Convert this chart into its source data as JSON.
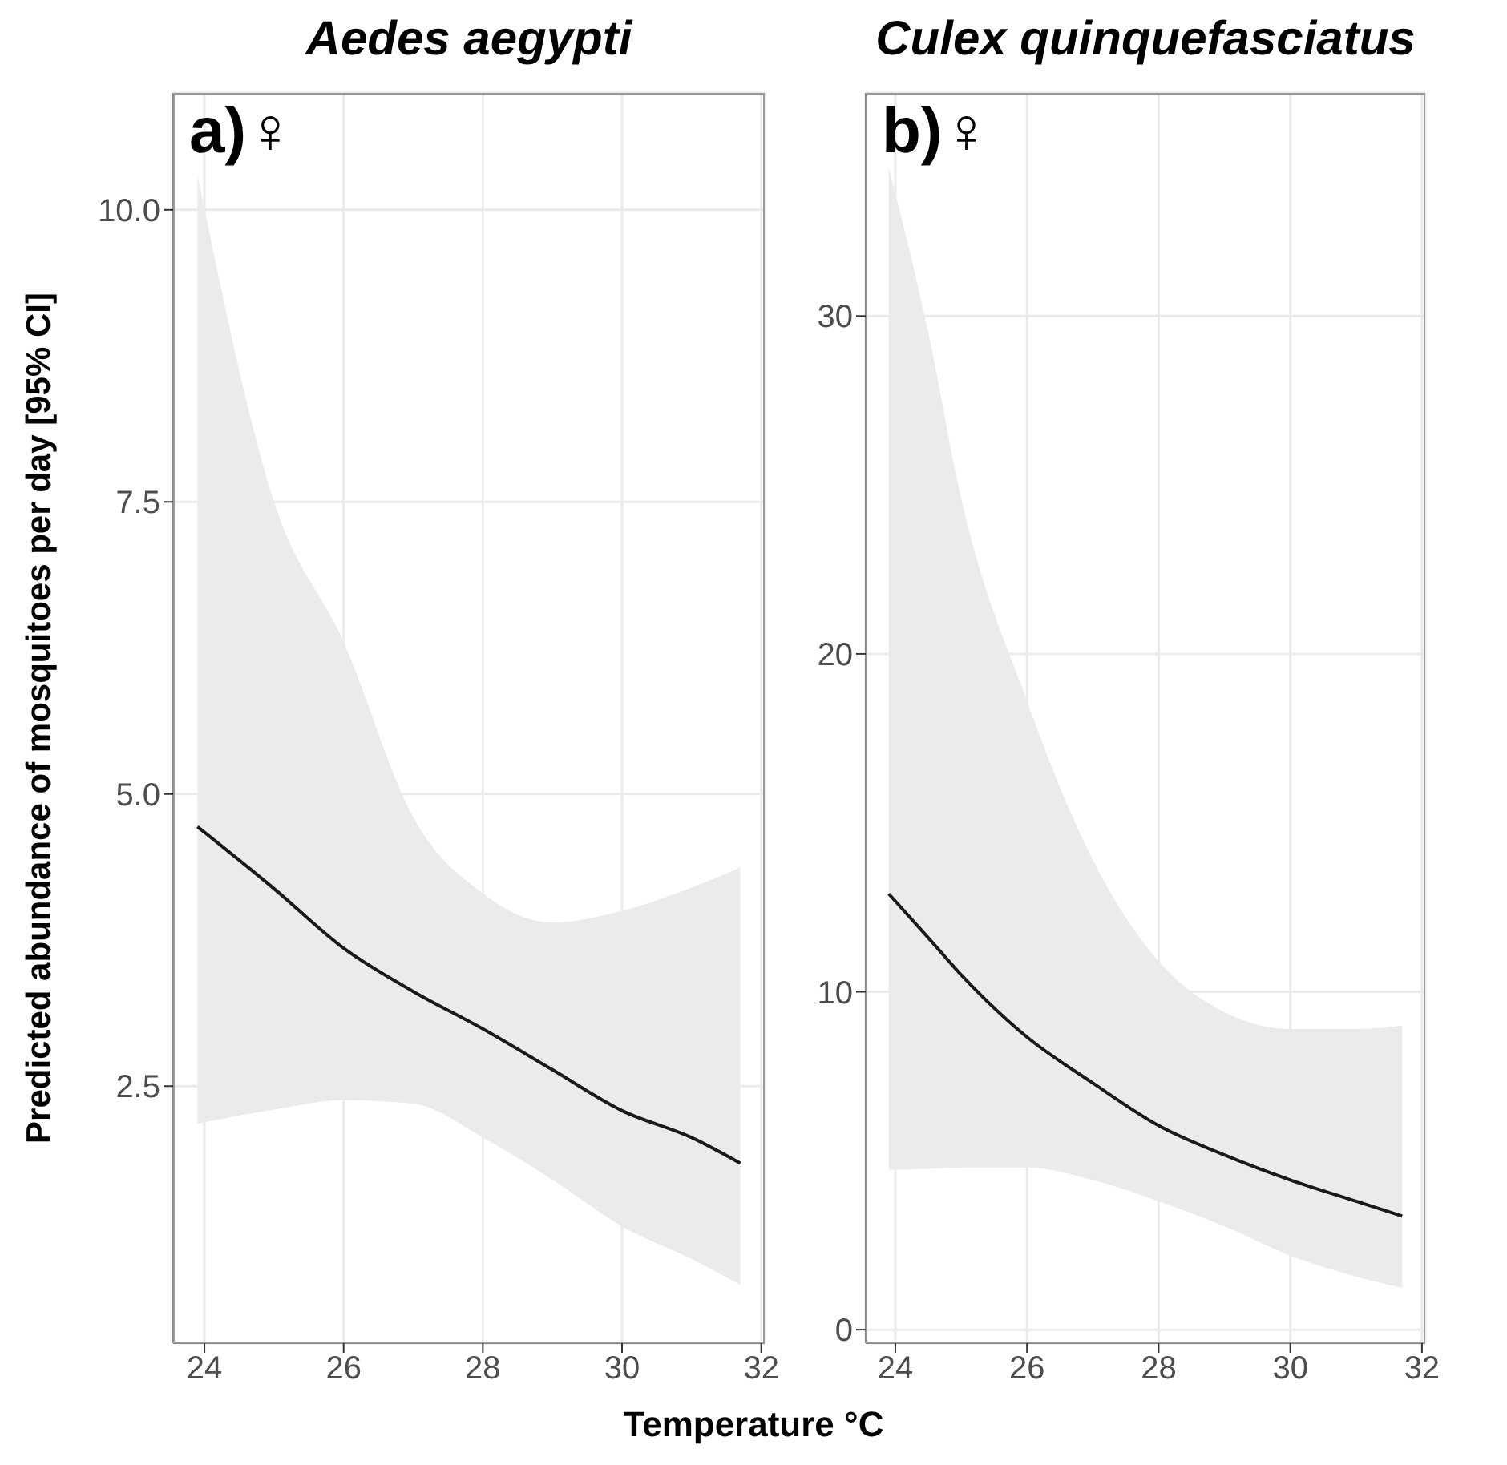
{
  "chart_data": [
    {
      "type": "line",
      "title": "Aedes aegypti",
      "ylabel": "Predicted abundance of mosquitoes per day [95% CI]",
      "xlabel": "Temperature °C",
      "annotations": [
        "a)♀"
      ],
      "xlim": [
        23.55,
        32.05
      ],
      "xticks": [
        24,
        26,
        28,
        30,
        32
      ],
      "ylim": [
        0.3,
        11.0
      ],
      "yticks": [
        2.5,
        {
          "value": 5,
          "label": "5.0"
        },
        7.5,
        {
          "value": 10,
          "label": "10.0"
        }
      ],
      "grid": true,
      "legend": false,
      "marker": "none",
      "line_style": "solid",
      "x": [
        23.9,
        25,
        26,
        27,
        28,
        29,
        30,
        31,
        31.7
      ],
      "series": [
        {
          "color": "#1a1a1a",
          "values": [
            4.72,
            4.19,
            3.68,
            3.31,
            2.99,
            2.64,
            2.29,
            2.06,
            1.84
          ],
          "lower": [
            2.18,
            2.3,
            2.38,
            2.35,
            2.06,
            1.7,
            1.3,
            1.02,
            0.8
          ],
          "upper": [
            10.3,
            7.5,
            6.3,
            4.8,
            4.15,
            3.9,
            4.0,
            4.2,
            4.37
          ]
        }
      ]
    },
    {
      "type": "line",
      "title": "Culex quinquefasciatus",
      "annotations": [
        "b)♀"
      ],
      "xlim": [
        23.55,
        32.05
      ],
      "xticks": [
        24,
        26,
        28,
        30,
        32
      ],
      "ylim": [
        -0.4,
        36.6
      ],
      "yticks": [
        0,
        10,
        20,
        30
      ],
      "grid": true,
      "legend": false,
      "marker": "none",
      "line_style": "solid",
      "x": [
        23.9,
        24.5,
        25,
        26,
        27,
        28,
        29,
        30,
        31,
        31.7
      ],
      "series": [
        {
          "color": "#1a1a1a",
          "values": [
            12.9,
            11.6,
            10.5,
            8.66,
            7.3,
            6.04,
            5.17,
            4.43,
            3.8,
            3.36
          ],
          "lower": [
            4.73,
            4.76,
            4.8,
            4.8,
            4.43,
            3.8,
            3.06,
            2.19,
            1.57,
            1.24
          ],
          "upper": [
            34.4,
            29.5,
            24.6,
            18.6,
            13.9,
            10.9,
            9.4,
            8.9,
            8.9,
            9.0
          ]
        }
      ]
    }
  ]
}
